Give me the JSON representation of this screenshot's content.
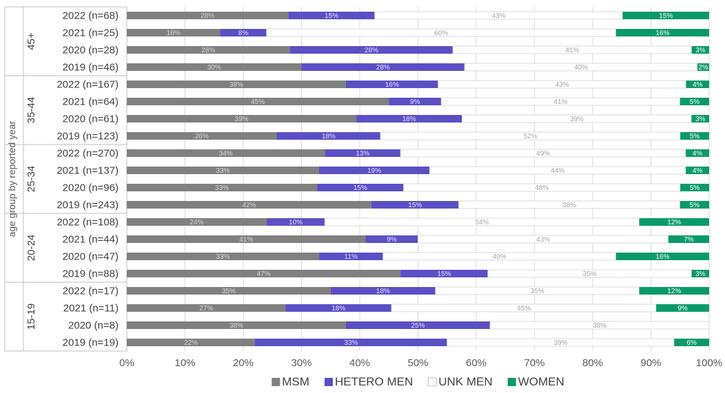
{
  "chart_data": {
    "type": "bar",
    "orientation": "horizontal",
    "stacked": "percent",
    "ylabel": "age group by reported year",
    "xlabel": "",
    "xlim": [
      0,
      100
    ],
    "x_ticks": [
      "0%",
      "10%",
      "20%",
      "30%",
      "40%",
      "50%",
      "60%",
      "70%",
      "80%",
      "90%",
      "100%"
    ],
    "legend_position": "bottom",
    "groups": [
      {
        "name": "45+",
        "rows": [
          {
            "label": "2022 (n=68)",
            "values": [
              28,
              15,
              43,
              15
            ],
            "labels": [
              "28%",
              "15%",
              "43%",
              "15%"
            ]
          },
          {
            "label": "2021 (n=25)",
            "values": [
              16,
              8,
              60,
              16
            ],
            "labels": [
              "16%",
              "8%",
              "60%",
              "16%"
            ]
          },
          {
            "label": "2020 (n=28)",
            "values": [
              28,
              28,
              41,
              3
            ],
            "labels": [
              "28%",
              "28%",
              "41%",
              "3%"
            ]
          },
          {
            "label": "2019 (n=46)",
            "values": [
              30,
              28,
              40,
              2
            ],
            "labels": [
              "30%",
              "28%",
              "40%",
              "2%"
            ]
          }
        ]
      },
      {
        "name": "35-44",
        "rows": [
          {
            "label": "2022 (n=167)",
            "values": [
              38,
              16,
              43,
              4
            ],
            "labels": [
              "38%",
              "16%",
              "43%",
              "4%"
            ]
          },
          {
            "label": "2021 (n=64)",
            "values": [
              45,
              9,
              41,
              5
            ],
            "labels": [
              "45%",
              "9%",
              "41%",
              "5%"
            ]
          },
          {
            "label": "2020 (n=61)",
            "values": [
              39,
              18,
              39,
              3
            ],
            "labels": [
              "39%",
              "18%",
              "39%",
              "3%"
            ]
          },
          {
            "label": "2019 (n=123)",
            "values": [
              26,
              18,
              52,
              5
            ],
            "labels": [
              "26%",
              "18%",
              "52%",
              "5%"
            ]
          }
        ]
      },
      {
        "name": "25-34",
        "rows": [
          {
            "label": "2022 (n=270)",
            "values": [
              34,
              13,
              49,
              4
            ],
            "labels": [
              "34%",
              "13%",
              "49%",
              "4%"
            ]
          },
          {
            "label": "2021 (n=137)",
            "values": [
              33,
              19,
              44,
              4
            ],
            "labels": [
              "33%",
              "19%",
              "44%",
              "4%"
            ]
          },
          {
            "label": "2020 (n=96)",
            "values": [
              33,
              15,
              48,
              5
            ],
            "labels": [
              "33%",
              "15%",
              "48%",
              "5%"
            ]
          },
          {
            "label": "2019 (n=243)",
            "values": [
              42,
              15,
              38,
              5
            ],
            "labels": [
              "42%",
              "15%",
              "38%",
              "5%"
            ]
          }
        ]
      },
      {
        "name": "20-24",
        "rows": [
          {
            "label": "2022 (n=108)",
            "values": [
              24,
              10,
              54,
              12
            ],
            "labels": [
              "24%",
              "10%",
              "54%",
              "12%"
            ]
          },
          {
            "label": "2021 (n=44)",
            "values": [
              41,
              9,
              43,
              7
            ],
            "labels": [
              "41%",
              "9%",
              "43%",
              "7%"
            ]
          },
          {
            "label": "2020 (n=47)",
            "values": [
              33,
              11,
              40,
              16
            ],
            "labels": [
              "33%",
              "11%",
              "40%",
              "16%"
            ]
          },
          {
            "label": "2019 (n=88)",
            "values": [
              47,
              15,
              35,
              3
            ],
            "labels": [
              "47%",
              "15%",
              "35%",
              "3%"
            ]
          }
        ]
      },
      {
        "name": "15-19",
        "rows": [
          {
            "label": "2022 (n=17)",
            "values": [
              35,
              18,
              35,
              12
            ],
            "labels": [
              "35%",
              "18%",
              "35%",
              "12%"
            ]
          },
          {
            "label": "2021 (n=11)",
            "values": [
              27,
              18,
              45,
              9
            ],
            "labels": [
              "27%",
              "18%",
              "45%",
              "9%"
            ]
          },
          {
            "label": "2020 (n=8)",
            "values": [
              38,
              25,
              38,
              0
            ],
            "labels": [
              "38%",
              "25%",
              "38%",
              ""
            ]
          },
          {
            "label": "2019 (n=19)",
            "values": [
              22,
              33,
              39,
              6
            ],
            "labels": [
              "22%",
              "33%",
              "39%",
              "6%"
            ]
          }
        ]
      }
    ],
    "series": [
      {
        "name": "MSM",
        "color": "#808080",
        "label_color": "#d9d9d9"
      },
      {
        "name": "HETERO MEN",
        "color": "#5b4fc4",
        "label_color": "#e6e3ff"
      },
      {
        "name": "UNK MEN",
        "color": "#ffffff",
        "border": "#d9d9d9",
        "label_color": "#a6a6a6"
      },
      {
        "name": "WOMEN",
        "color": "#0a9a6a",
        "label_color": "#ffffff"
      }
    ]
  }
}
